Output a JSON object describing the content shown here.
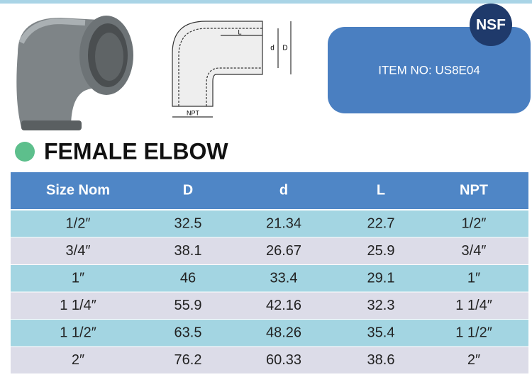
{
  "badge": "NSF",
  "item_no": "ITEM  NO: US8E04",
  "title": "FEMALE ELBOW",
  "diagram": {
    "L": "L",
    "d": "d",
    "D": "D",
    "NPT": "NPT"
  },
  "table": {
    "headers": [
      "Size Nom",
      "D",
      "d",
      "L",
      "NPT"
    ],
    "rows": [
      [
        "1/2″",
        "32.5",
        "21.34",
        "22.7",
        "1/2″"
      ],
      [
        "3/4″",
        "38.1",
        "26.67",
        "25.9",
        "3/4″"
      ],
      [
        "1″",
        "46",
        "33.4",
        "29.1",
        "1″"
      ],
      [
        "1 1/4″",
        "55.9",
        "42.16",
        "32.3",
        "1 1/4″"
      ],
      [
        "1 1/2″",
        "63.5",
        "48.26",
        "35.4",
        "1 1/2″"
      ],
      [
        "2″",
        "76.2",
        "60.33",
        "38.6",
        "2″"
      ]
    ]
  }
}
